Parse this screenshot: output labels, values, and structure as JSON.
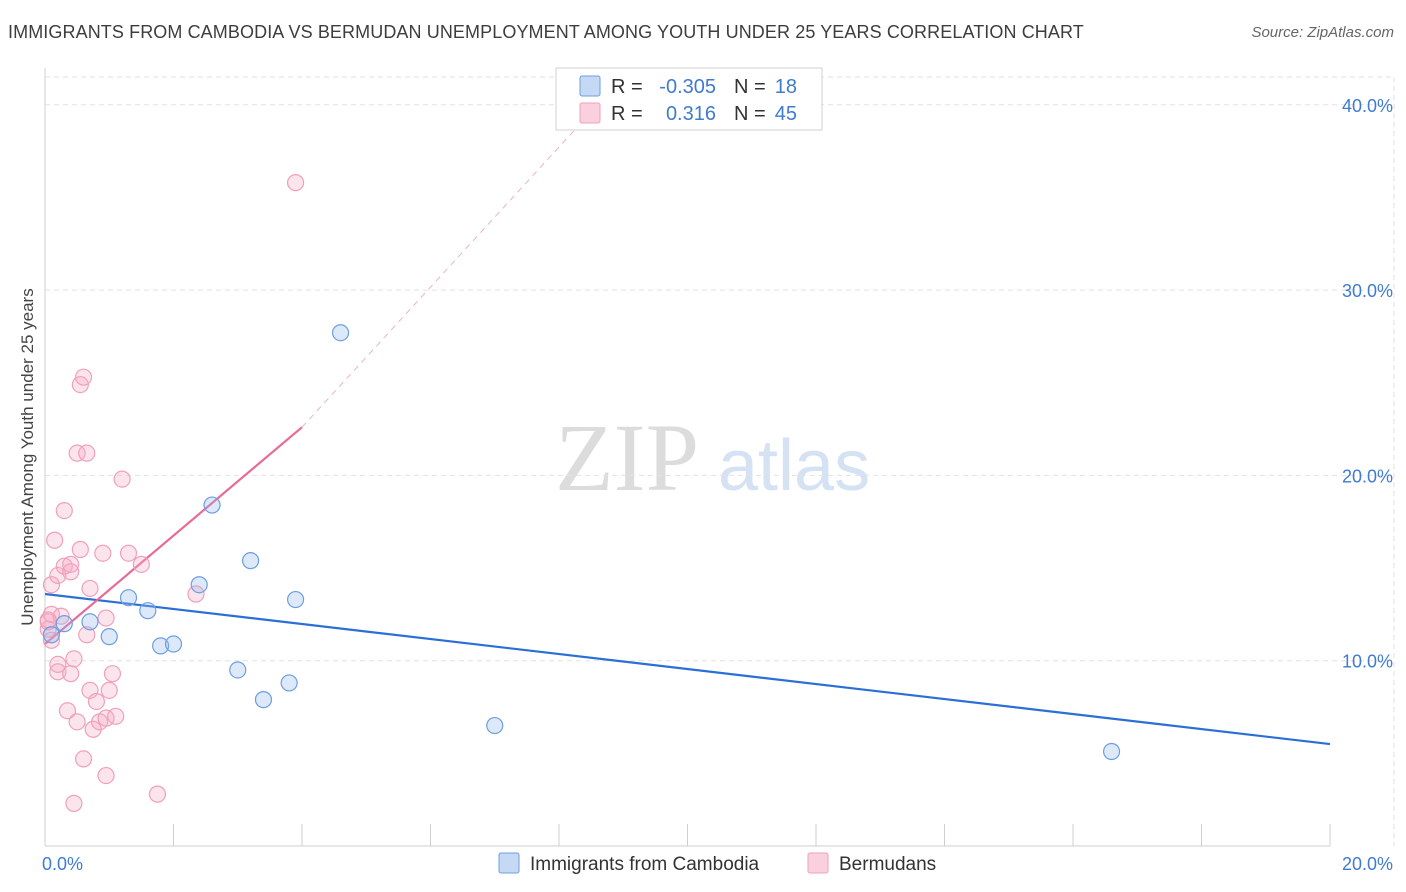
{
  "header": {
    "title": "IMMIGRANTS FROM CAMBODIA VS BERMUDAN UNEMPLOYMENT AMONG YOUTH UNDER 25 YEARS CORRELATION CHART",
    "source": "Source: ZipAtlas.com"
  },
  "watermark": {
    "zip": "ZIP",
    "atlas": "atlas"
  },
  "chart_data": {
    "type": "scatter",
    "title": "IMMIGRANTS FROM CAMBODIA VS BERMUDAN UNEMPLOYMENT AMONG YOUTH UNDER 25 YEARS CORRELATION CHART",
    "xlabel": "",
    "ylabel": "Unemployment Among Youth under 25 years",
    "xlim": [
      0,
      20
    ],
    "ylim": [
      0,
      41.5
    ],
    "x_tick_labels": [
      "0.0%",
      "20.0%"
    ],
    "y_ticks": [
      10,
      20,
      30,
      40
    ],
    "y_tick_labels": [
      "10.0%",
      "20.0%",
      "30.0%",
      "40.0%"
    ],
    "colors": {
      "cambodia": "#6d9fe0",
      "bermuda": "#f0a0bb",
      "cambodia_line": "#2b6fd6",
      "bermuda_line": "#e86a96",
      "tick_label": "#3f7bd1"
    },
    "legend": [
      {
        "r_label": "R =",
        "r_value": "-0.305",
        "n_label": "N =",
        "n_value": "18"
      },
      {
        "r_label": "R =",
        "r_value": "0.316",
        "n_label": "N =",
        "n_value": "45"
      }
    ],
    "series": [
      {
        "name": "Immigrants from Cambodia",
        "points": [
          [
            0.1,
            11.4
          ],
          [
            0.3,
            12.0
          ],
          [
            0.7,
            12.1
          ],
          [
            1.0,
            11.3
          ],
          [
            1.3,
            13.4
          ],
          [
            1.6,
            12.7
          ],
          [
            1.8,
            10.8
          ],
          [
            2.0,
            10.9
          ],
          [
            2.4,
            14.1
          ],
          [
            2.6,
            18.4
          ],
          [
            3.0,
            9.5
          ],
          [
            3.2,
            15.4
          ],
          [
            3.4,
            7.9
          ],
          [
            3.8,
            8.8
          ],
          [
            3.9,
            13.3
          ],
          [
            4.6,
            27.7
          ],
          [
            7.0,
            6.5
          ],
          [
            16.6,
            5.1
          ]
        ],
        "trend": {
          "x0": 0.0,
          "y0": 13.6,
          "x1": 20.0,
          "y1": 5.5
        }
      },
      {
        "name": "Bermudans",
        "points": [
          [
            0.05,
            12.1
          ],
          [
            0.05,
            11.7
          ],
          [
            0.1,
            14.1
          ],
          [
            0.1,
            12.5
          ],
          [
            0.1,
            11.1
          ],
          [
            0.15,
            16.5
          ],
          [
            0.2,
            9.8
          ],
          [
            0.2,
            9.4
          ],
          [
            0.2,
            14.6
          ],
          [
            0.25,
            12.4
          ],
          [
            0.3,
            15.1
          ],
          [
            0.3,
            18.1
          ],
          [
            0.35,
            7.3
          ],
          [
            0.4,
            14.8
          ],
          [
            0.4,
            15.2
          ],
          [
            0.4,
            9.3
          ],
          [
            0.45,
            10.1
          ],
          [
            0.45,
            2.3
          ],
          [
            0.5,
            21.2
          ],
          [
            0.5,
            6.7
          ],
          [
            0.55,
            24.9
          ],
          [
            0.55,
            16.0
          ],
          [
            0.6,
            25.3
          ],
          [
            0.6,
            4.7
          ],
          [
            0.65,
            21.2
          ],
          [
            0.65,
            11.4
          ],
          [
            0.7,
            13.9
          ],
          [
            0.7,
            8.4
          ],
          [
            0.75,
            6.3
          ],
          [
            0.8,
            7.8
          ],
          [
            0.85,
            6.7
          ],
          [
            0.9,
            15.8
          ],
          [
            0.95,
            6.9
          ],
          [
            0.95,
            12.3
          ],
          [
            0.95,
            3.8
          ],
          [
            1.0,
            8.4
          ],
          [
            1.05,
            9.3
          ],
          [
            1.1,
            7.0
          ],
          [
            1.2,
            19.8
          ],
          [
            1.3,
            15.8
          ],
          [
            1.5,
            15.2
          ],
          [
            1.75,
            2.8
          ],
          [
            2.35,
            13.6
          ],
          [
            3.9,
            35.8
          ],
          [
            0.05,
            12.2
          ]
        ],
        "trend": {
          "x0": 0.0,
          "y0": 10.9,
          "x1": 4.0,
          "y1": 22.6
        },
        "trend_extension": {
          "x0": 4.0,
          "y0": 22.6,
          "x1": 9.0,
          "y1": 41.5
        }
      }
    ]
  },
  "bottom_legend": [
    {
      "label": "Immigrants from Cambodia"
    },
    {
      "label": "Bermudans"
    }
  ]
}
